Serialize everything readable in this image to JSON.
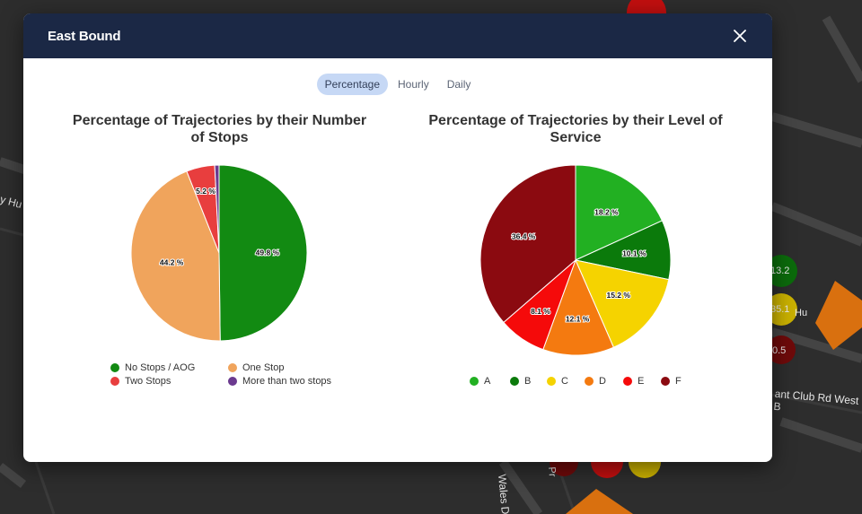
{
  "map": {
    "street_labels": [
      "y Hu",
      "ant Club Rd West B",
      "Wales Dr N",
      "Hu",
      "Pr"
    ],
    "markers": [
      "13.2",
      "35.1",
      "0.5"
    ]
  },
  "modal": {
    "title": "East Bound",
    "close_icon": "close-icon"
  },
  "tabs": [
    {
      "label": "Percentage",
      "active": true
    },
    {
      "label": "Hourly",
      "active": false
    },
    {
      "label": "Daily",
      "active": false
    }
  ],
  "chart_data": [
    {
      "type": "pie",
      "title": "Percentage of Trajectories by their Number of Stops",
      "categories": [
        "No Stops / AOG",
        "One Stop",
        "Two Stops",
        "More than two stops"
      ],
      "values": [
        49.8,
        44.2,
        5.2,
        0.8
      ],
      "labels": [
        "49.8 %",
        "44.2 %",
        "5.2 %",
        ""
      ],
      "colors": [
        "#128a12",
        "#f0a45c",
        "#e83e3e",
        "#6b3a8f"
      ],
      "legend_placement": "bottom"
    },
    {
      "type": "pie",
      "title": "Percentage of Trajectories by their Level of Service",
      "categories": [
        "A",
        "B",
        "C",
        "D",
        "E",
        "F"
      ],
      "values": [
        18.2,
        10.1,
        15.2,
        12.1,
        8.1,
        36.4
      ],
      "labels": [
        "18.2 %",
        "10.1 %",
        "15.2 %",
        "12.1 %",
        "8.1 %",
        "36.4 %"
      ],
      "colors": [
        "#22b022",
        "#0b7a0b",
        "#f5d300",
        "#f47a10",
        "#f50a0a",
        "#8b0a10"
      ],
      "legend_placement": "bottom"
    }
  ]
}
